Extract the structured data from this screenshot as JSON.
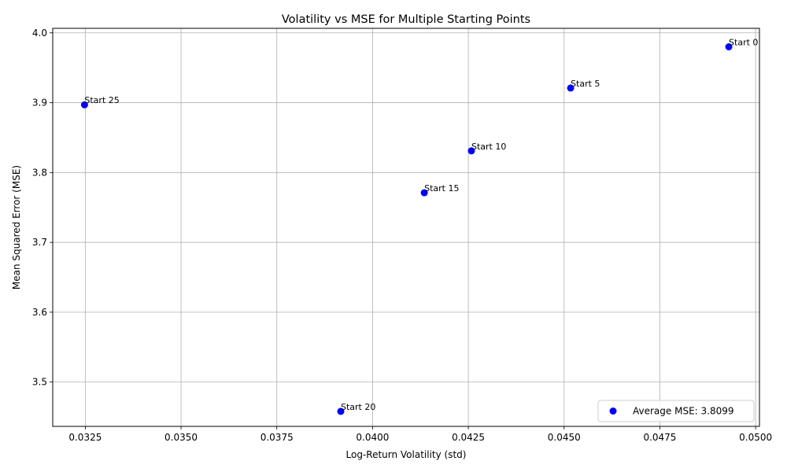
{
  "chart_data": {
    "type": "scatter",
    "title": "Volatility vs MSE for Multiple Starting Points",
    "xlabel": "Log-Return Volatility (std)",
    "ylabel": "Mean Squared Error (MSE)",
    "xlim": [
      0.03165,
      0.0501
    ],
    "ylim": [
      3.4365,
      4.0065
    ],
    "xticks": [
      0.0325,
      0.035,
      0.0375,
      0.04,
      0.0425,
      0.045,
      0.0475,
      0.05
    ],
    "xtick_labels": [
      "0.0325",
      "0.0350",
      "0.0375",
      "0.0400",
      "0.0425",
      "0.0450",
      "0.0475",
      "0.0500"
    ],
    "yticks": [
      3.5,
      3.6,
      3.7,
      3.8,
      3.9,
      4.0
    ],
    "ytick_labels": [
      "3.5",
      "3.6",
      "3.7",
      "3.8",
      "3.9",
      "4.0"
    ],
    "grid": true,
    "legend_position": "lower-right",
    "series": [
      {
        "name": "Average MSE: 3.8099",
        "color": "#0000ff",
        "points": [
          {
            "label": "Start 0",
            "x": 0.0493,
            "y": 3.98
          },
          {
            "label": "Start 5",
            "x": 0.04517,
            "y": 3.921
          },
          {
            "label": "Start 10",
            "x": 0.04258,
            "y": 3.831
          },
          {
            "label": "Start 15",
            "x": 0.04135,
            "y": 3.771
          },
          {
            "label": "Start 20",
            "x": 0.03917,
            "y": 3.458
          },
          {
            "label": "Start 25",
            "x": 0.03248,
            "y": 3.897
          }
        ]
      }
    ]
  }
}
